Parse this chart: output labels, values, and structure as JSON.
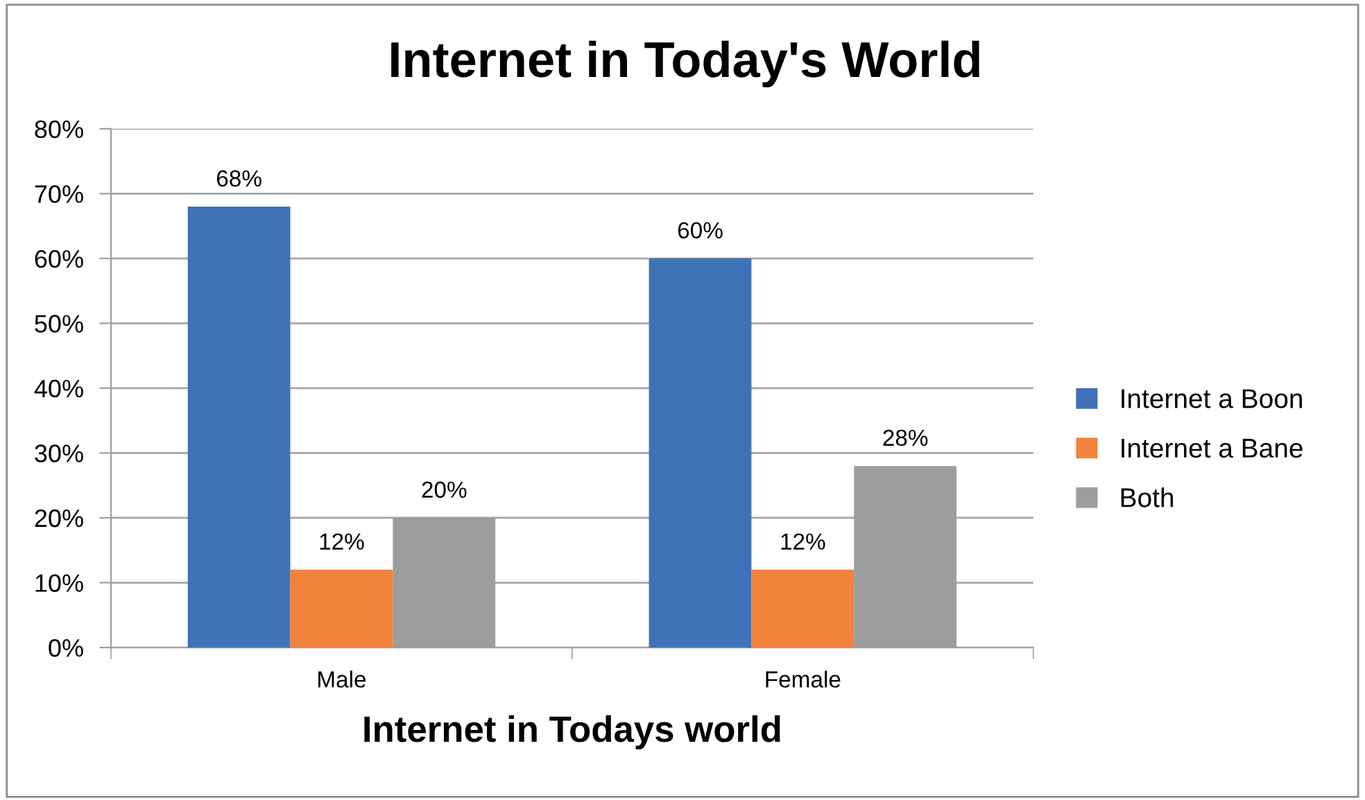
{
  "chart_data": {
    "type": "bar",
    "title": "Internet in Today's World",
    "xlabel": "Internet in Todays world",
    "categories": [
      "Male",
      "Female"
    ],
    "series": [
      {
        "name": "Internet a Boon",
        "color": "#4072b8",
        "values": [
          68,
          60
        ],
        "value_labels": [
          "68%",
          "60%"
        ]
      },
      {
        "name": "Internet a Bane",
        "color": "#f0823c",
        "values": [
          12,
          12
        ],
        "value_labels": [
          "12%",
          "12%"
        ]
      },
      {
        "name": "Both",
        "color": "#9b9d9e",
        "values": [
          20,
          28
        ],
        "value_labels": [
          "20%",
          "28%"
        ]
      }
    ],
    "ylim": [
      0,
      80
    ],
    "yticks": [
      {
        "value": 0,
        "label": "0%"
      },
      {
        "value": 10,
        "label": "10%"
      },
      {
        "value": 20,
        "label": "20%"
      },
      {
        "value": 30,
        "label": "30%"
      },
      {
        "value": 40,
        "label": "40%"
      },
      {
        "value": 50,
        "label": "50%"
      },
      {
        "value": 60,
        "label": "60%"
      },
      {
        "value": 70,
        "label": "70%"
      },
      {
        "value": 80,
        "label": "80%"
      }
    ],
    "grid": "y",
    "legend": "right"
  }
}
